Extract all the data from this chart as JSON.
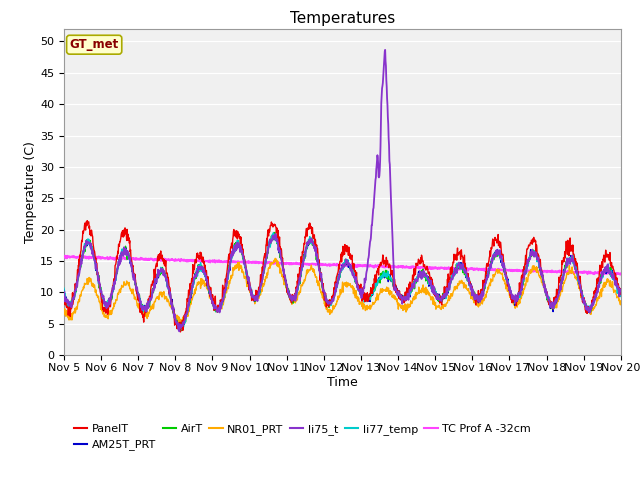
{
  "title": "Temperatures",
  "xlabel": "Time",
  "ylabel": "Temperature (C)",
  "ylim": [
    0,
    52
  ],
  "yticks": [
    0,
    5,
    10,
    15,
    20,
    25,
    30,
    35,
    40,
    45,
    50
  ],
  "x_start": 5,
  "x_end": 20,
  "background_color": "#e8e8e8",
  "plot_bg": "#f0f0f0",
  "annotation_text": "GT_met",
  "annotation_color": "#880000",
  "annotation_bg": "#ffffcc",
  "annotation_border": "#aaaa00",
  "series": {
    "PanelT": {
      "color": "#ee0000",
      "lw": 1.0
    },
    "AM25T_PRT": {
      "color": "#0000cc",
      "lw": 1.0
    },
    "AirT": {
      "color": "#00cc00",
      "lw": 1.0
    },
    "NR01_PRT": {
      "color": "#ffaa00",
      "lw": 1.0
    },
    "li75_t": {
      "color": "#8833cc",
      "lw": 1.3
    },
    "li77_temp": {
      "color": "#00cccc",
      "lw": 1.0
    },
    "TC Prof A -32cm": {
      "color": "#ff44ff",
      "lw": 1.5
    }
  },
  "legend_items": [
    {
      "label": "PanelT",
      "color": "#ee0000"
    },
    {
      "label": "AM25T_PRT",
      "color": "#0000cc"
    },
    {
      "label": "AirT",
      "color": "#00cc00"
    },
    {
      "label": "NR01_PRT",
      "color": "#ffaa00"
    },
    {
      "label": "li75_t",
      "color": "#8833cc"
    },
    {
      "label": "li77_temp",
      "color": "#00cccc"
    },
    {
      "label": "TC Prof A -32cm",
      "color": "#ff44ff"
    }
  ],
  "xtick_positions": [
    5,
    6,
    7,
    8,
    9,
    10,
    11,
    12,
    13,
    14,
    15,
    16,
    17,
    18,
    19,
    20
  ],
  "xtick_labels": [
    "Nov 5",
    "Nov 6",
    "Nov 7",
    "Nov 8",
    "Nov 9",
    "Nov 10",
    "Nov 11",
    "Nov 12",
    "Nov 13",
    "Nov 14",
    "Nov 15",
    "Nov 16",
    "Nov 17",
    "Nov 18",
    "Nov 19",
    "Nov 20"
  ]
}
